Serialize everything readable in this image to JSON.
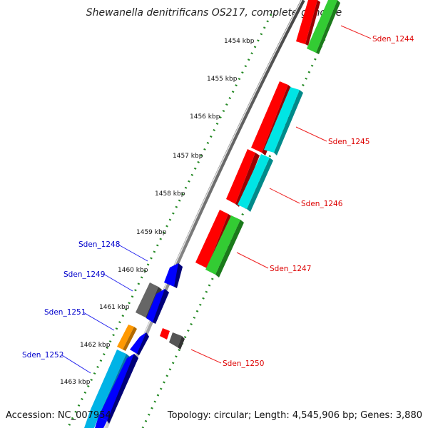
{
  "title": "Shewanella denitrificans OS217, complete genome",
  "footer": {
    "accession": "Accession: NC_007954",
    "topology": "Topology: circular; Length: 4,545,906 bp; Genes: 3,880"
  },
  "ticks": [
    "1454 kbp",
    "1455 kbp",
    "1456 kbp",
    "1457 kbp",
    "1458 kbp",
    "1459 kbp",
    "1460 kbp",
    "1461 kbp",
    "1462 kbp",
    "1463 kbp"
  ],
  "genes_right": [
    "Sden_1244",
    "Sden_1245",
    "Sden_1246",
    "Sden_1247",
    "Sden_1250"
  ],
  "genes_left": [
    "Sden_1248",
    "Sden_1249",
    "Sden_1251",
    "Sden_1252"
  ],
  "colors": {
    "forward_cds": "#ff0000",
    "reverse_cds": "#0000ff",
    "rna_green": "#33cc33",
    "rna_cyan": "#00e5e5",
    "other": "#777777",
    "orange": "#ff9900",
    "label_right": "#dd0000",
    "label_left": "#0000cc",
    "dots": "#228822"
  }
}
